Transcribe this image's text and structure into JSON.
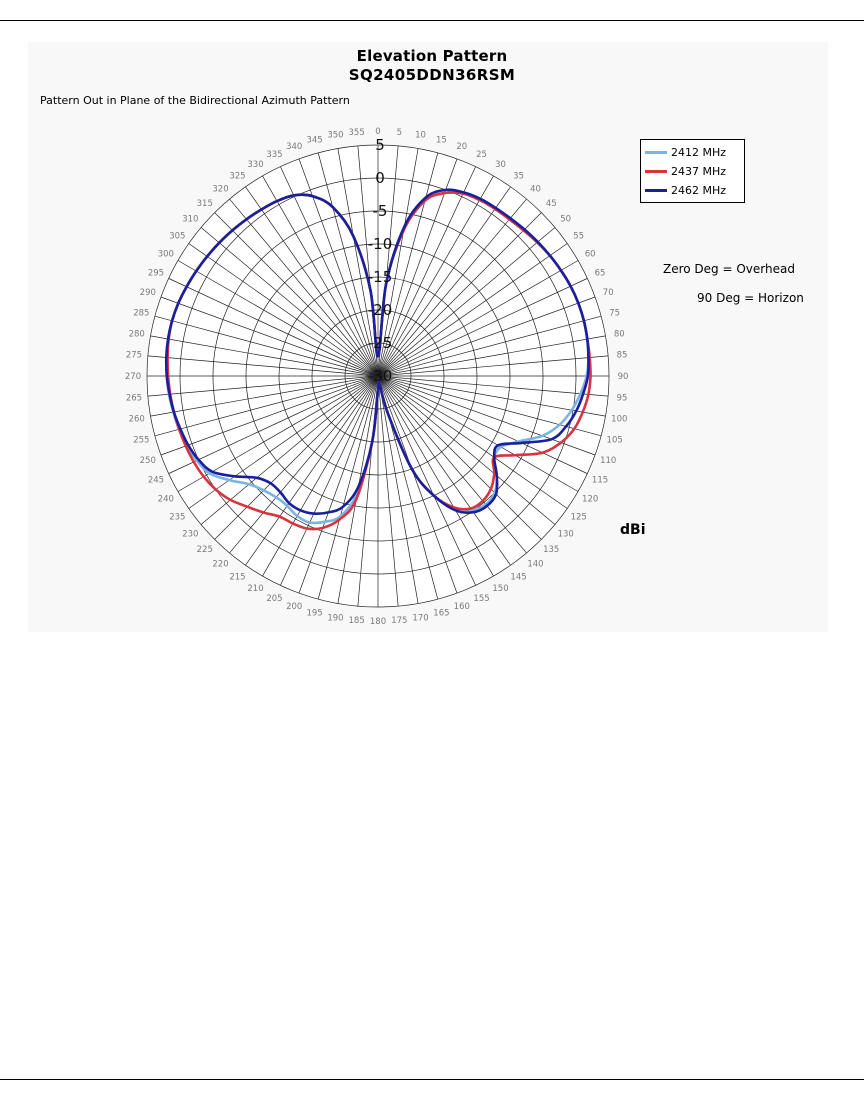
{
  "chart_data": {
    "type": "line",
    "subtype": "polar",
    "title": "Elevation Pattern",
    "subtitle": "SQ2405DDN36RSM",
    "caption": "Pattern Out in Plane of the Bidirectional Azimuth Pattern",
    "unit_label": "dBi",
    "notes": [
      "Zero Deg = Overhead",
      "90 Deg = Horizon"
    ],
    "angle_ticks": [
      0,
      5,
      10,
      15,
      20,
      25,
      30,
      35,
      40,
      45,
      50,
      55,
      60,
      65,
      70,
      75,
      80,
      85,
      90,
      95,
      100,
      105,
      110,
      115,
      120,
      125,
      130,
      135,
      140,
      145,
      150,
      155,
      160,
      165,
      170,
      175,
      180,
      185,
      190,
      195,
      200,
      205,
      210,
      215,
      220,
      225,
      230,
      235,
      240,
      245,
      250,
      255,
      260,
      265,
      270,
      275,
      280,
      285,
      290,
      295,
      300,
      305,
      310,
      315,
      320,
      325,
      330,
      335,
      340,
      345,
      350,
      355
    ],
    "radial_ticks": [
      5,
      0,
      -5,
      -10,
      -15,
      -20,
      -25,
      -30
    ],
    "radial_tick_labels": [
      "5",
      "0",
      "-5",
      "-10",
      "-15",
      "-20",
      "-25",
      "-30"
    ],
    "rlim": [
      -30,
      5
    ],
    "grid": true,
    "legend_position": "top-right",
    "series": [
      {
        "name": "2412 MHz",
        "color": "#79b4e2",
        "angles": [
          0,
          5,
          10,
          15,
          20,
          25,
          30,
          35,
          40,
          45,
          50,
          55,
          60,
          65,
          70,
          75,
          80,
          85,
          90,
          95,
          100,
          105,
          110,
          115,
          120,
          125,
          130,
          135,
          140,
          145,
          150,
          155,
          160,
          165,
          170,
          175,
          180,
          185,
          190,
          195,
          200,
          205,
          210,
          215,
          220,
          225,
          230,
          235,
          240,
          245,
          250,
          255,
          260,
          265,
          270,
          275,
          280,
          285,
          290,
          295,
          300,
          305,
          310,
          315,
          320,
          325,
          330,
          335,
          340,
          345,
          350,
          355
        ],
        "values": [
          -27,
          -16,
          -7.5,
          -2.5,
          -0.5,
          0.5,
          0.8,
          0.9,
          1,
          1.2,
          1.5,
          1.8,
          2,
          2.2,
          2.3,
          2.3,
          2.2,
          2,
          1.6,
          0.8,
          -0.2,
          -1.5,
          -3.5,
          -6.5,
          -8.5,
          -8.5,
          -6.5,
          -5,
          -4.6,
          -5.2,
          -7,
          -10,
          -15,
          -24,
          -29,
          -29,
          -28,
          -20,
          -12,
          -8,
          -6.5,
          -5.5,
          -5.5,
          -6,
          -6,
          -5.5,
          -4.5,
          -2.5,
          -0.5,
          0.3,
          0.8,
          1.2,
          1.5,
          1.8,
          2,
          2.2,
          2.3,
          2.3,
          2.2,
          2,
          1.8,
          1.6,
          1.4,
          1.2,
          1,
          0.8,
          0.6,
          0.2,
          -1,
          -3.5,
          -8.5,
          -17
        ]
      },
      {
        "name": "2437 MHz",
        "color": "#d8333f",
        "angles": [
          0,
          5,
          10,
          15,
          20,
          25,
          30,
          35,
          40,
          45,
          50,
          55,
          60,
          65,
          70,
          75,
          80,
          85,
          90,
          95,
          100,
          105,
          110,
          115,
          120,
          125,
          130,
          135,
          140,
          145,
          150,
          155,
          160,
          165,
          170,
          175,
          180,
          185,
          190,
          195,
          200,
          205,
          210,
          215,
          220,
          225,
          230,
          235,
          240,
          245,
          250,
          255,
          260,
          265,
          270,
          275,
          280,
          285,
          290,
          295,
          300,
          305,
          310,
          315,
          320,
          325,
          330,
          335,
          340,
          345,
          350,
          355
        ],
        "values": [
          -27,
          -16,
          -7.5,
          -2.5,
          -0.5,
          0.5,
          0.8,
          0.9,
          1,
          1.2,
          1.5,
          1.8,
          2,
          2.2,
          2.3,
          2.3,
          2.2,
          2.2,
          2.2,
          2,
          1.5,
          0.8,
          -0.5,
          -2.5,
          -6,
          -8.5,
          -7,
          -5.8,
          -5.3,
          -5.5,
          -7,
          -10,
          -15,
          -24,
          -29,
          -29,
          -28,
          -20,
          -11,
          -7.5,
          -5.5,
          -4.5,
          -4.2,
          -4,
          -3,
          -2,
          -0.8,
          0,
          0.5,
          0.8,
          1,
          1.2,
          1.4,
          1.6,
          1.8,
          2,
          2.2,
          2.3,
          2.2,
          2,
          1.8,
          1.6,
          1.4,
          1.2,
          1,
          0.8,
          0.6,
          0.2,
          -1,
          -3.5,
          -8.5,
          -17
        ]
      },
      {
        "name": "2462 MHz",
        "color": "#1a1f9c",
        "angles": [
          0,
          5,
          10,
          15,
          20,
          25,
          30,
          35,
          40,
          45,
          50,
          55,
          60,
          65,
          70,
          75,
          80,
          85,
          90,
          95,
          100,
          105,
          110,
          115,
          120,
          125,
          130,
          135,
          140,
          145,
          150,
          155,
          160,
          165,
          170,
          175,
          180,
          185,
          190,
          195,
          200,
          205,
          210,
          215,
          220,
          225,
          230,
          235,
          240,
          245,
          250,
          255,
          260,
          265,
          270,
          275,
          280,
          285,
          290,
          295,
          300,
          305,
          310,
          315,
          320,
          325,
          330,
          335,
          340,
          345,
          350,
          355
        ],
        "values": [
          -27,
          -16,
          -7,
          -2,
          0,
          0.7,
          1,
          1.1,
          1.2,
          1.4,
          1.6,
          1.8,
          2,
          2.2,
          2.3,
          2.3,
          2.2,
          2,
          1.8,
          1.2,
          0.5,
          -0.5,
          -2,
          -6,
          -9,
          -8.5,
          -6.5,
          -4.7,
          -4.3,
          -4.8,
          -6.5,
          -10,
          -15,
          -24,
          -29,
          -29,
          -28,
          -20,
          -13,
          -9.5,
          -8,
          -7,
          -6.5,
          -6.5,
          -7,
          -7,
          -6,
          -3.5,
          -1,
          0,
          0.6,
          1,
          1.4,
          1.7,
          2,
          2.2,
          2.3,
          2.3,
          2.2,
          2,
          1.8,
          1.6,
          1.4,
          1.2,
          1,
          0.8,
          0.6,
          0.2,
          -1,
          -3.5,
          -8.5,
          -17
        ]
      }
    ]
  }
}
